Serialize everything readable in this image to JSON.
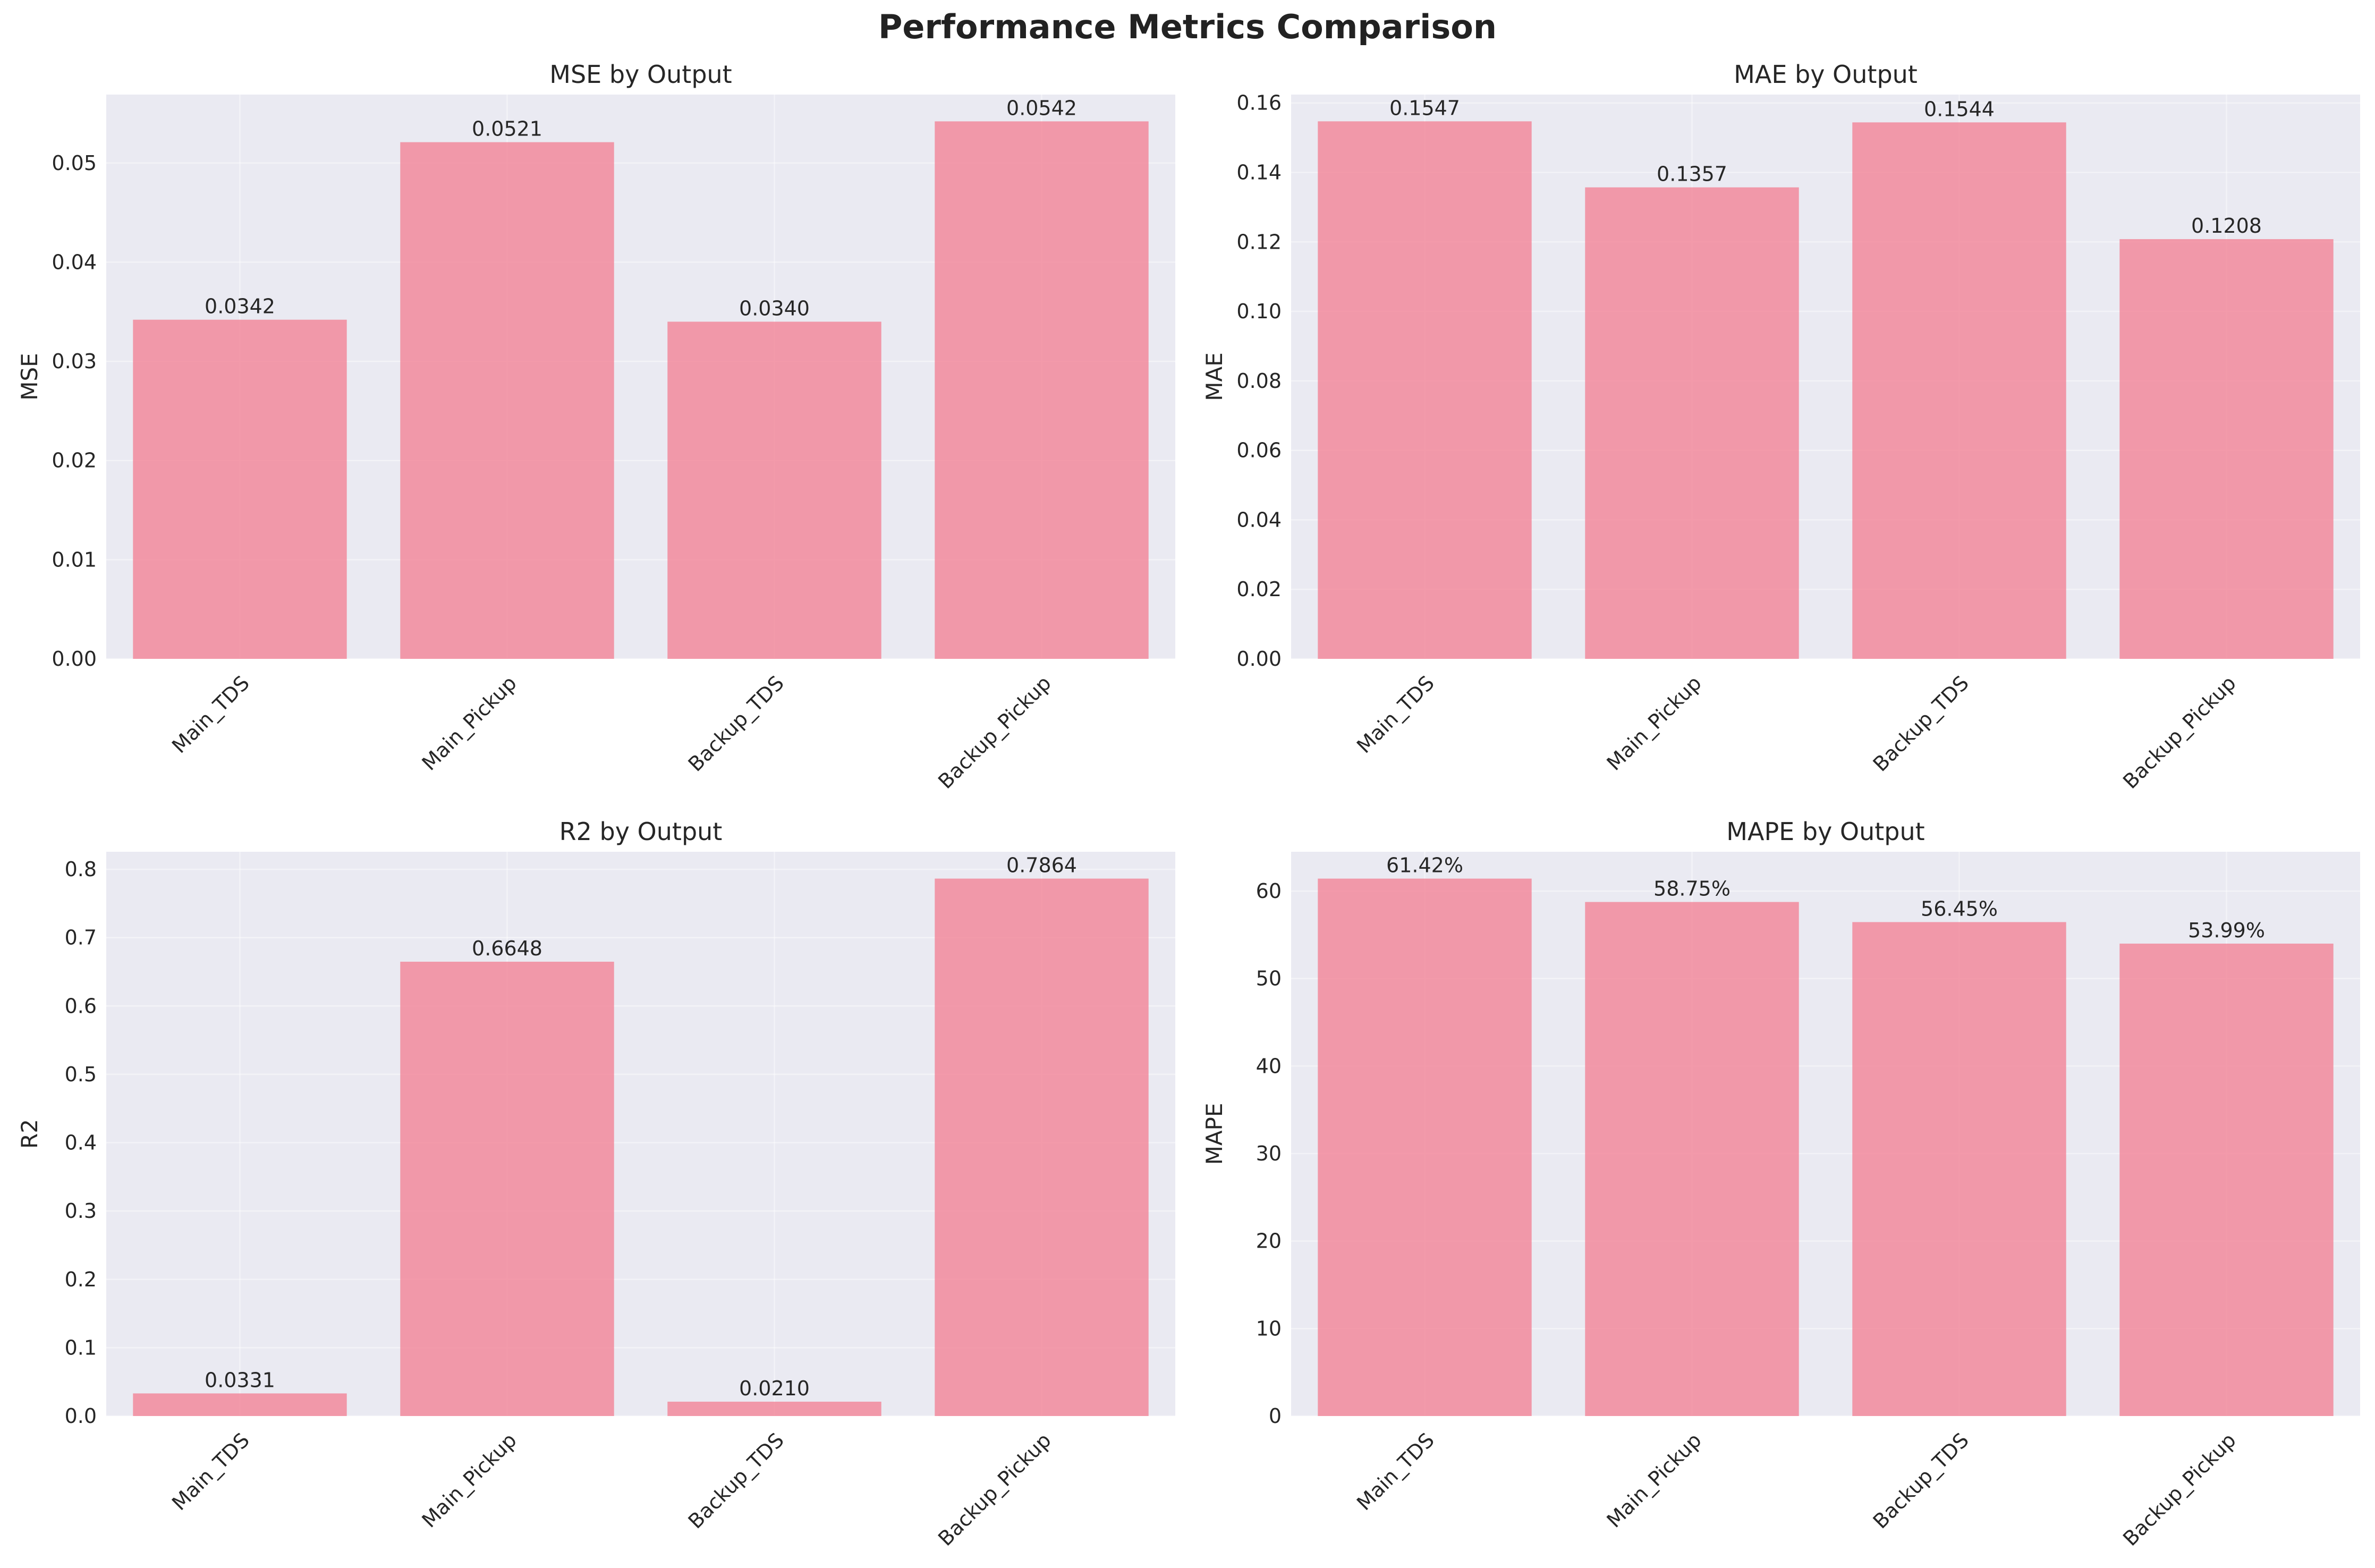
{
  "title": "Performance Metrics Comparison",
  "chart_data": [
    {
      "type": "bar",
      "title": "MSE by Output",
      "xlabel": "",
      "ylabel": "MSE",
      "categories": [
        "Main_TDS",
        "Main_Pickup",
        "Backup_TDS",
        "Backup_Pickup"
      ],
      "values": [
        0.0342,
        0.0521,
        0.034,
        0.0542
      ],
      "value_labels": [
        "0.0342",
        "0.0521",
        "0.0340",
        "0.0542"
      ],
      "ylim": [
        0,
        0.0569
      ],
      "yticks": [
        0,
        0.01,
        0.02,
        0.03,
        0.04,
        0.05
      ],
      "ytick_labels": [
        "0.00",
        "0.01",
        "0.02",
        "0.03",
        "0.04",
        "0.05"
      ],
      "grid": true,
      "color": "#f2899c"
    },
    {
      "type": "bar",
      "title": "MAE by Output",
      "xlabel": "",
      "ylabel": "MAE",
      "categories": [
        "Main_TDS",
        "Main_Pickup",
        "Backup_TDS",
        "Backup_Pickup"
      ],
      "values": [
        0.1547,
        0.1357,
        0.1544,
        0.1208
      ],
      "value_labels": [
        "0.1547",
        "0.1357",
        "0.1544",
        "0.1208"
      ],
      "ylim": [
        0,
        0.1624
      ],
      "yticks": [
        0,
        0.02,
        0.04,
        0.06,
        0.08,
        0.1,
        0.12,
        0.14,
        0.16
      ],
      "ytick_labels": [
        "0.00",
        "0.02",
        "0.04",
        "0.06",
        "0.08",
        "0.10",
        "0.12",
        "0.14",
        "0.16"
      ],
      "grid": true,
      "color": "#f2899c"
    },
    {
      "type": "bar",
      "title": "R2 by Output",
      "xlabel": "",
      "ylabel": "R2",
      "categories": [
        "Main_TDS",
        "Main_Pickup",
        "Backup_TDS",
        "Backup_Pickup"
      ],
      "values": [
        0.0331,
        0.6648,
        0.021,
        0.7864
      ],
      "value_labels": [
        "0.0331",
        "0.6648",
        "0.0210",
        "0.7864"
      ],
      "ylim": [
        0,
        0.8257
      ],
      "yticks": [
        0,
        0.1,
        0.2,
        0.3,
        0.4,
        0.5,
        0.6,
        0.7,
        0.8
      ],
      "ytick_labels": [
        "0.0",
        "0.1",
        "0.2",
        "0.3",
        "0.4",
        "0.5",
        "0.6",
        "0.7",
        "0.8"
      ],
      "grid": true,
      "color": "#f2899c"
    },
    {
      "type": "bar",
      "title": "MAPE by Output",
      "xlabel": "",
      "ylabel": "MAPE",
      "categories": [
        "Main_TDS",
        "Main_Pickup",
        "Backup_TDS",
        "Backup_Pickup"
      ],
      "values": [
        61.42,
        58.75,
        56.45,
        53.99
      ],
      "value_labels": [
        "61.42%",
        "58.75%",
        "56.45%",
        "53.99%"
      ],
      "ylim": [
        0,
        64.49
      ],
      "yticks": [
        0,
        10,
        20,
        30,
        40,
        50,
        60
      ],
      "ytick_labels": [
        "0",
        "10",
        "20",
        "30",
        "40",
        "50",
        "60"
      ],
      "grid": true,
      "color": "#f2899c"
    }
  ]
}
